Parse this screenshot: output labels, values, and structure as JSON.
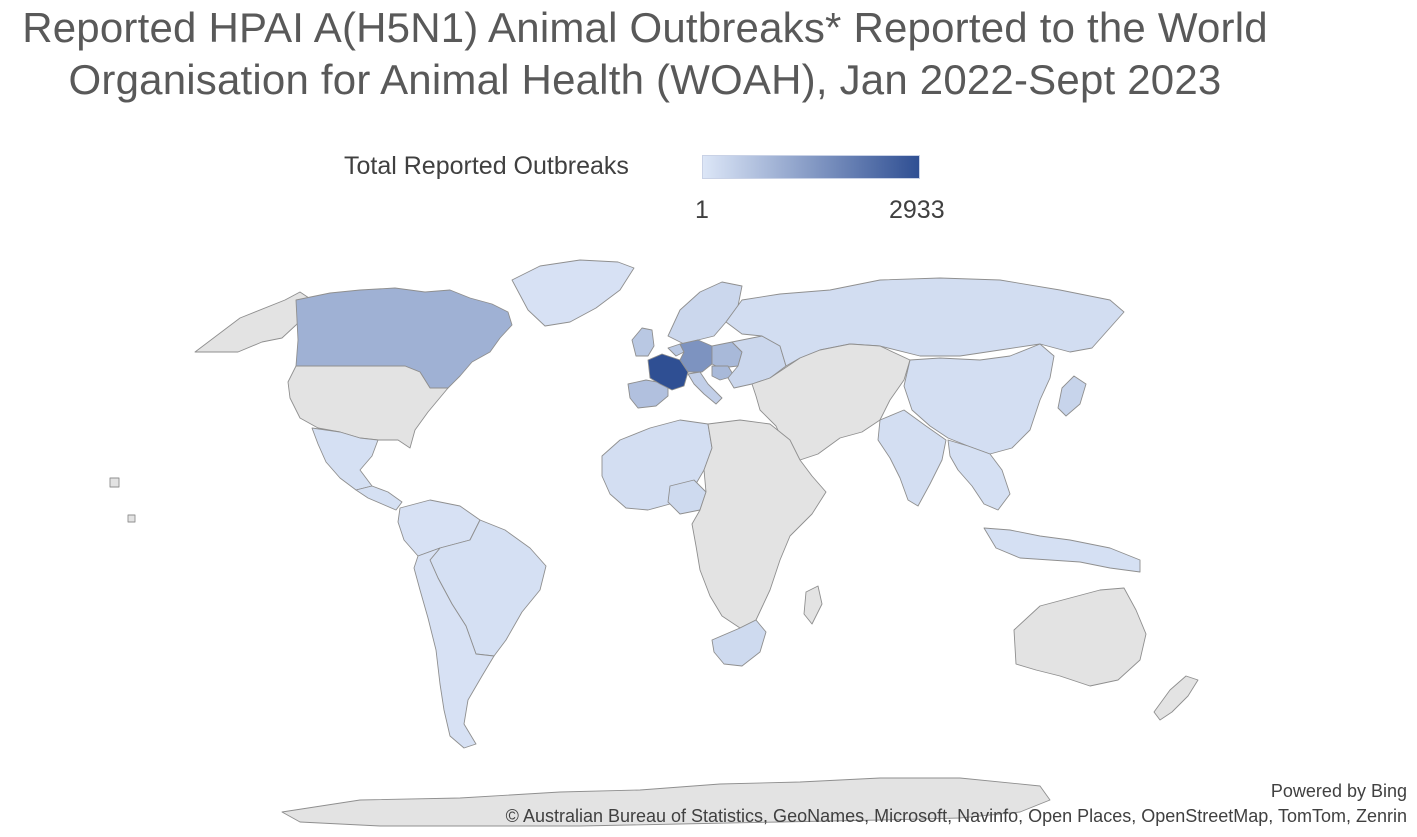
{
  "title_line1": "Reported HPAI A(H5N1) Animal Outbreaks* Reported to the World",
  "title_line2": "Organisation for Animal Health (WOAH), Jan 2022-Sept 2023",
  "legend": {
    "label": "Total Reported Outbreaks",
    "min_label": "1",
    "max_label": "2933",
    "min": 1,
    "max": 2933,
    "color_low": "#dce6f7",
    "color_high": "#2f4f93"
  },
  "colors": {
    "no_data": "#e3e3e3",
    "border": "#8f8f8f"
  },
  "attribution": {
    "powered_by": "Powered by Bing",
    "credits": "© Australian Bureau of Statistics, GeoNames, Microsoft, Navinfo, Open Places, OpenStreetMap, TomTom, Zenrin"
  },
  "regions": [
    {
      "name": "france",
      "level": 1.0
    },
    {
      "name": "germany",
      "level": 0.55
    },
    {
      "name": "canada",
      "level": 0.35
    },
    {
      "name": "poland",
      "level": 0.3
    },
    {
      "name": "hungary",
      "level": 0.3
    },
    {
      "name": "spain",
      "level": 0.25
    },
    {
      "name": "uk",
      "level": 0.2
    },
    {
      "name": "italy",
      "level": 0.15
    },
    {
      "name": "netherlands",
      "level": 0.2
    },
    {
      "name": "scandinavia",
      "level": 0.1
    },
    {
      "name": "eastern-europe",
      "level": 0.1
    },
    {
      "name": "usa",
      "level": null
    },
    {
      "name": "alaska",
      "level": null
    },
    {
      "name": "greenland",
      "level": 0.03
    },
    {
      "name": "mexico",
      "level": 0.04
    },
    {
      "name": "central-america",
      "level": 0.04
    },
    {
      "name": "south-america-north",
      "level": 0.03
    },
    {
      "name": "brazil",
      "level": 0.04
    },
    {
      "name": "south-america-south",
      "level": 0.03
    },
    {
      "name": "west-africa",
      "level": 0.05
    },
    {
      "name": "nigeria",
      "level": 0.08
    },
    {
      "name": "africa-rest",
      "level": null
    },
    {
      "name": "south-africa",
      "level": 0.08
    },
    {
      "name": "russia",
      "level": 0.06
    },
    {
      "name": "china",
      "level": 0.05
    },
    {
      "name": "india",
      "level": 0.05
    },
    {
      "name": "middle-east",
      "level": null
    },
    {
      "name": "southeast-asia",
      "level": 0.04
    },
    {
      "name": "japan",
      "level": 0.12
    },
    {
      "name": "indonesia",
      "level": 0.04
    },
    {
      "name": "australia",
      "level": null
    },
    {
      "name": "new-zealand",
      "level": null
    },
    {
      "name": "antarctica",
      "level": null
    }
  ]
}
